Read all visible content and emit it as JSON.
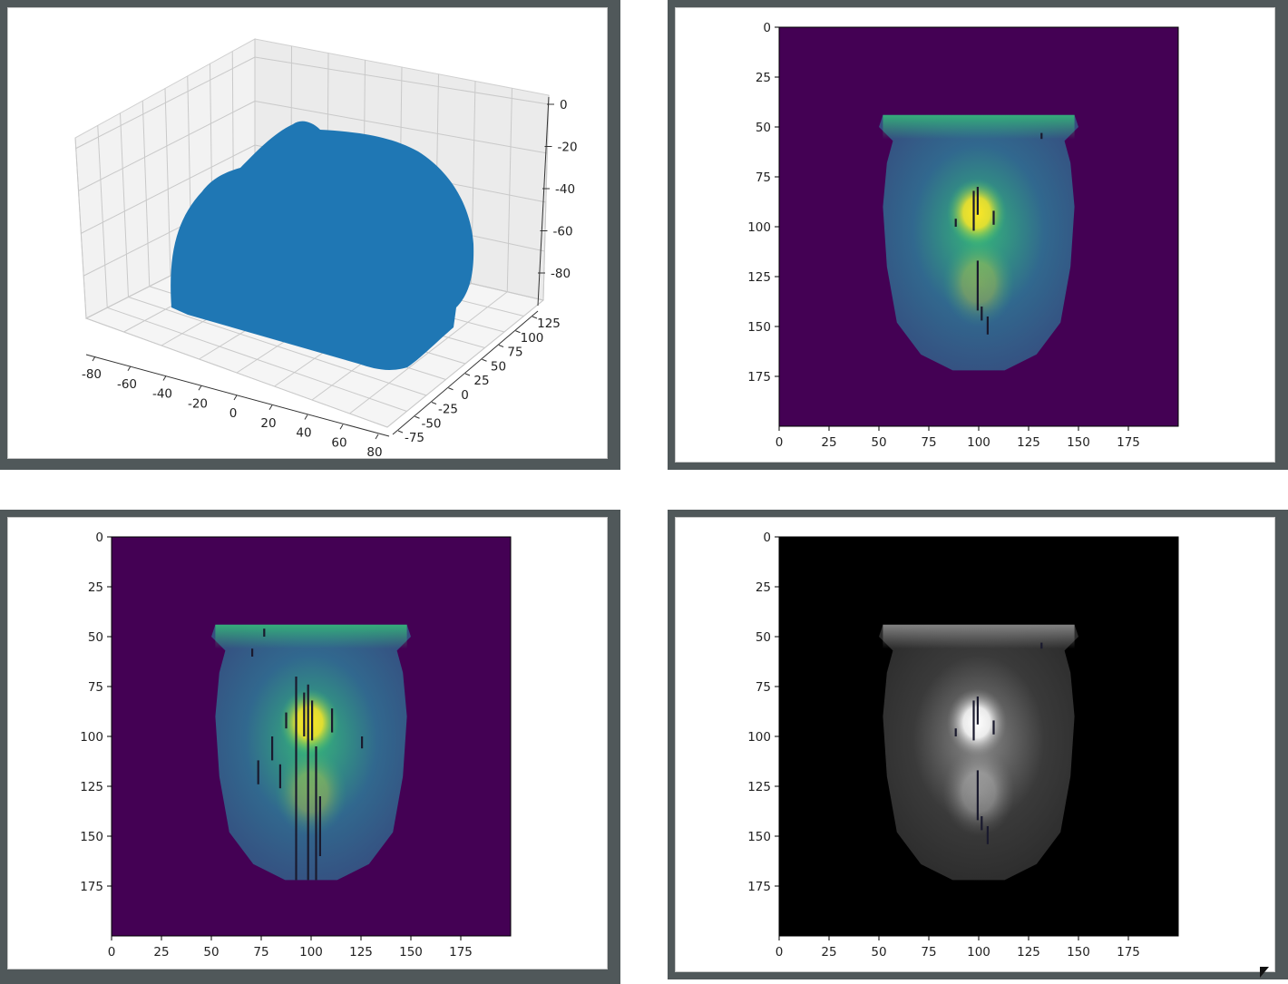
{
  "chart_data": [
    {
      "type": "scatter3d",
      "title": "",
      "color": "#1f77b4",
      "xticks": [
        -80,
        -60,
        -40,
        -20,
        0,
        20,
        40,
        60,
        80
      ],
      "yticks": [
        -75,
        -50,
        -25,
        0,
        25,
        50,
        75,
        100,
        125
      ],
      "zticks": [
        0,
        -20,
        -40,
        -60,
        -80
      ],
      "xlim": [
        -90,
        90
      ],
      "ylim": [
        -85,
        135
      ],
      "zlim": [
        -95,
        5
      ],
      "grid": true
    },
    {
      "type": "heatmap",
      "title": "",
      "colormap": "viridis",
      "xticks": [
        0,
        25,
        50,
        75,
        100,
        125,
        150,
        175
      ],
      "yticks": [
        0,
        25,
        50,
        75,
        100,
        125,
        150,
        175
      ],
      "xlim": [
        0,
        200
      ],
      "ylim": [
        200,
        0
      ],
      "colors": {
        "background": "#440154",
        "low": "#31688e",
        "mid": "#35b779",
        "high": "#fde725"
      },
      "artifacts": "sparse"
    },
    {
      "type": "heatmap",
      "title": "",
      "colormap": "viridis",
      "xticks": [
        0,
        25,
        50,
        75,
        100,
        125,
        150,
        175
      ],
      "yticks": [
        0,
        25,
        50,
        75,
        100,
        125,
        150,
        175
      ],
      "xlim": [
        0,
        200
      ],
      "ylim": [
        200,
        0
      ],
      "colors": {
        "background": "#440154",
        "low": "#31688e",
        "mid": "#35b779",
        "high": "#fde725"
      },
      "artifacts": "dense"
    },
    {
      "type": "heatmap",
      "title": "",
      "colormap": "gray",
      "xticks": [
        0,
        25,
        50,
        75,
        100,
        125,
        150,
        175
      ],
      "yticks": [
        0,
        25,
        50,
        75,
        100,
        125,
        150,
        175
      ],
      "xlim": [
        0,
        200
      ],
      "ylim": [
        200,
        0
      ],
      "colors": {
        "background": "#000000",
        "low": "#3a3a3a",
        "mid": "#8c8c8c",
        "high": "#ffffff"
      },
      "artifacts": "sparse"
    }
  ]
}
